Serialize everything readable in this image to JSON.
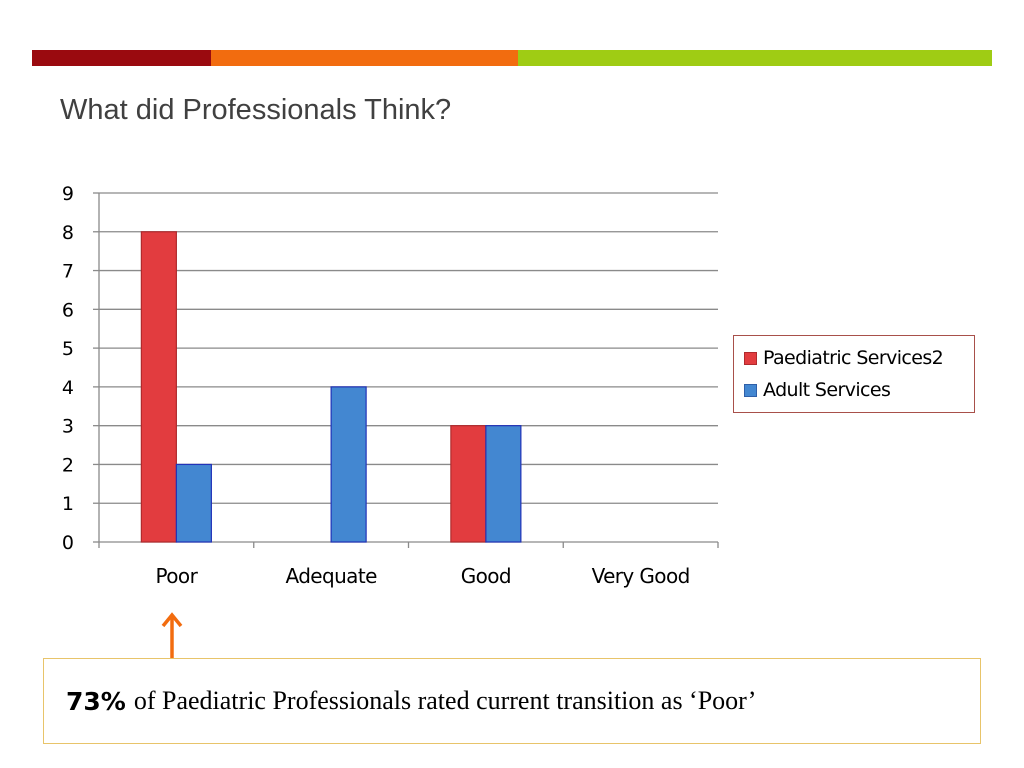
{
  "slide": {
    "title": "What did Professionals Think?",
    "accent_colors": [
      "#9a0a0f",
      "#f26c0f",
      "#9fcc14"
    ]
  },
  "legend": {
    "items": [
      {
        "label": "Paediatric Services2",
        "color": "#e23c3f"
      },
      {
        "label": "Adult Services",
        "color": "#4387d1"
      }
    ]
  },
  "chart_data": {
    "type": "bar",
    "categories": [
      "Poor",
      "Adequate",
      "Good",
      "Very Good"
    ],
    "series": [
      {
        "name": "Paediatric Services2",
        "color": "#e23c3f",
        "values": [
          8,
          0,
          3,
          0
        ]
      },
      {
        "name": "Adult Services",
        "color": "#4387d1",
        "values": [
          2,
          4,
          3,
          0
        ]
      }
    ],
    "yticks": [
      "0",
      "1",
      "2",
      "3",
      "4",
      "5",
      "6",
      "7",
      "8",
      "9"
    ],
    "ylim": [
      0,
      9
    ],
    "grid": true,
    "legend_position": "right"
  },
  "callout": {
    "highlight": "73%",
    "text": "of Paediatric Professionals rated current transition as ‘Poor’"
  },
  "arrow": {
    "icon": "up-arrow-icon",
    "color": "#f26c0f"
  }
}
